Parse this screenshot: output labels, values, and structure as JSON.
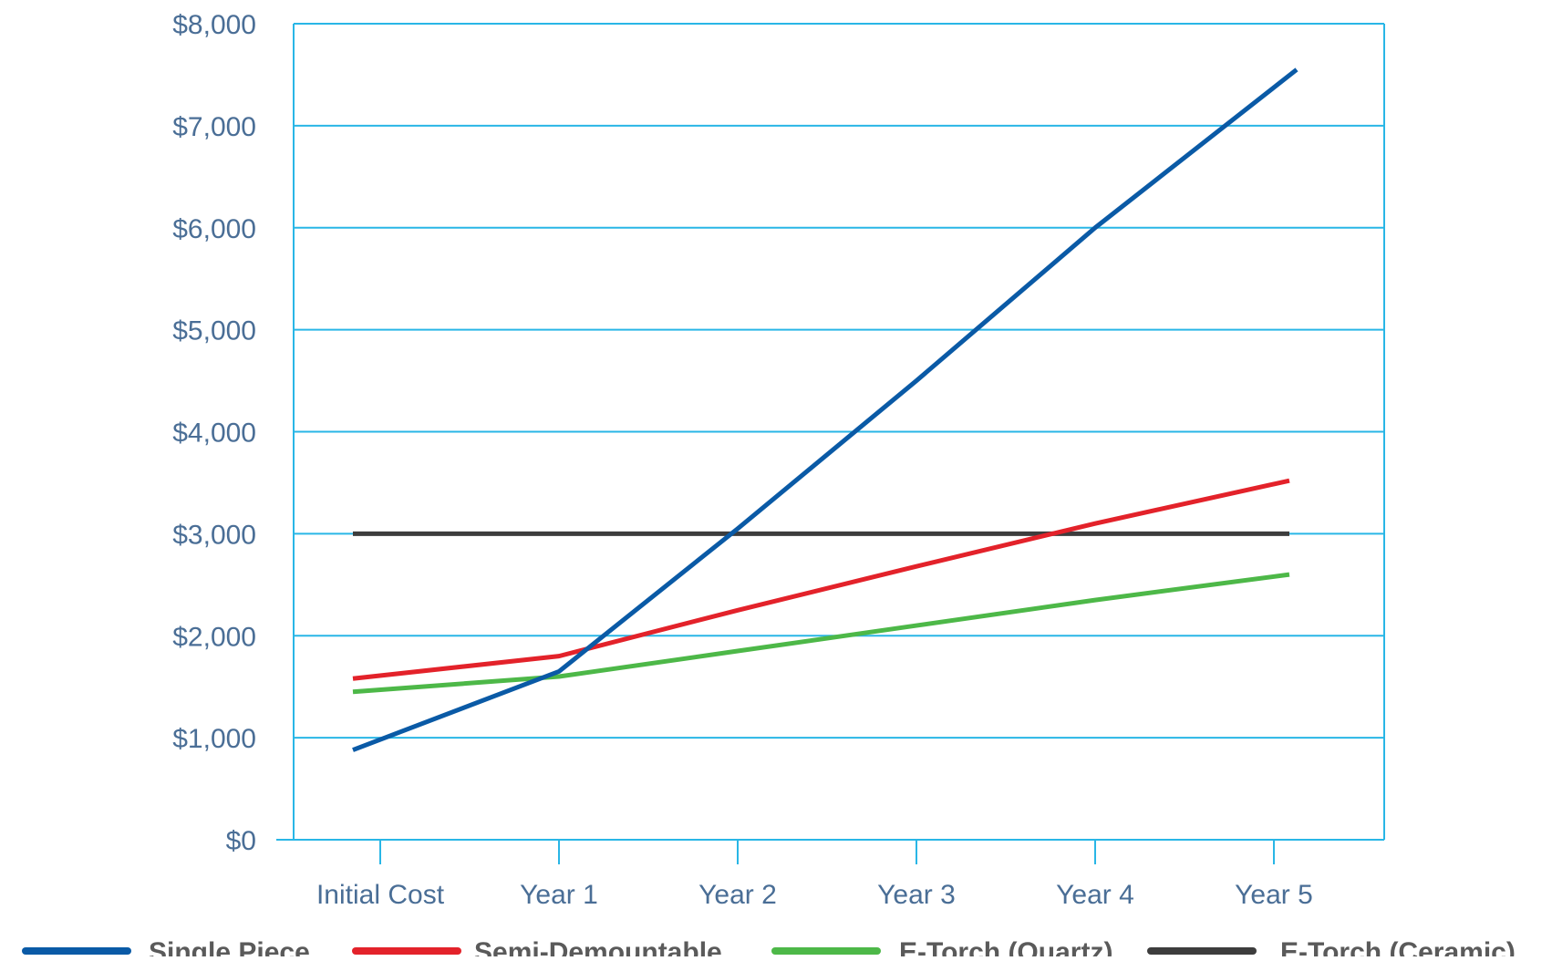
{
  "chart_data": {
    "type": "line",
    "categories": [
      "Initial Cost",
      "Year 1",
      "Year 2",
      "Year 3",
      "Year 4",
      "Year 5"
    ],
    "ylim": [
      0,
      8000
    ],
    "yticks": [
      "$0",
      "$1,000",
      "$2,000",
      "$3,000",
      "$4,000",
      "$5,000",
      "$6,000",
      "$7,000",
      "$8,000"
    ],
    "grid": true,
    "legend_position": "bottom",
    "series": [
      {
        "name": "Single Piece",
        "color": "#0a5aa6",
        "values": [
          880,
          1650,
          3050,
          4500,
          6000,
          7550
        ]
      },
      {
        "name": "Semi-Demountable",
        "color": "#e3222a",
        "values": [
          1580,
          1800,
          2250,
          2680,
          3100,
          3520
        ]
      },
      {
        "name": "E-Torch (Quartz)",
        "color": "#4db848",
        "values": [
          1450,
          1600,
          1850,
          2100,
          2350,
          2600
        ]
      },
      {
        "name": "E-Torch (Ceramic)",
        "color": "#3d3d3d",
        "values": [
          3000,
          3000,
          3000,
          3000,
          3000,
          3000
        ]
      }
    ]
  },
  "colors": {
    "grid": "#29b6e6",
    "tick_text": "#4a6e96",
    "legend_text": "#5a5a5a"
  }
}
